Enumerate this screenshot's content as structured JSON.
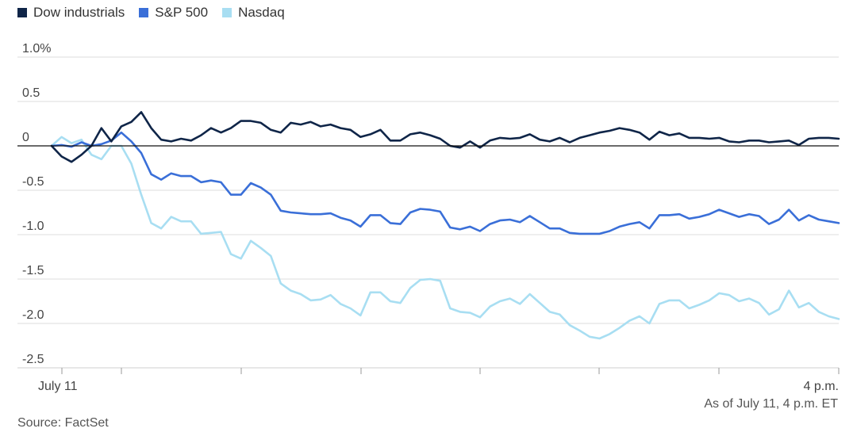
{
  "chart_data": {
    "type": "line",
    "title": "",
    "xlabel": "",
    "ylabel": "",
    "ylim": [
      -2.5,
      1.0
    ],
    "y_ticks": [
      1.0,
      0.5,
      0,
      -0.5,
      -1.0,
      -1.5,
      -2.0,
      -2.5
    ],
    "y_tick_labels": [
      "1.0%",
      "0.5",
      "0",
      "-0.5",
      "-1.0",
      "-1.5",
      "-2.0",
      "-2.5"
    ],
    "x_tick_labels": [
      "July 11",
      "4 p.m."
    ],
    "legend_position": "top-left",
    "grid": true,
    "series": [
      {
        "name": "Dow industrials",
        "color": "#0f2548",
        "values": [
          0,
          -0.12,
          -0.18,
          -0.1,
          0,
          0.2,
          0.05,
          0.22,
          0.27,
          0.38,
          0.2,
          0.07,
          0.05,
          0.08,
          0.06,
          0.12,
          0.2,
          0.15,
          0.2,
          0.28,
          0.28,
          0.26,
          0.18,
          0.15,
          0.26,
          0.24,
          0.27,
          0.22,
          0.24,
          0.2,
          0.18,
          0.1,
          0.13,
          0.18,
          0.06,
          0.06,
          0.13,
          0.15,
          0.12,
          0.08,
          0,
          -0.02,
          0.05,
          -0.02,
          0.06,
          0.09,
          0.08,
          0.09,
          0.13,
          0.07,
          0.05,
          0.09,
          0.04,
          0.09,
          0.12,
          0.15,
          0.17,
          0.2,
          0.18,
          0.15,
          0.07,
          0.16,
          0.12,
          0.14,
          0.09,
          0.09,
          0.08,
          0.09,
          0.05,
          0.04,
          0.06,
          0.06,
          0.04,
          0.05,
          0.06,
          0.01,
          0.08,
          0.09,
          0.09,
          0.08
        ]
      },
      {
        "name": "S&P 500",
        "color": "#3a6fd8",
        "values": [
          0,
          0.01,
          -0.01,
          0.04,
          0,
          0.02,
          0.06,
          0.15,
          0.05,
          -0.08,
          -0.32,
          -0.38,
          -0.31,
          -0.34,
          -0.34,
          -0.41,
          -0.39,
          -0.41,
          -0.55,
          -0.55,
          -0.42,
          -0.47,
          -0.55,
          -0.73,
          -0.75,
          -0.76,
          -0.77,
          -0.77,
          -0.76,
          -0.81,
          -0.84,
          -0.91,
          -0.78,
          -0.78,
          -0.87,
          -0.88,
          -0.75,
          -0.71,
          -0.72,
          -0.74,
          -0.92,
          -0.94,
          -0.91,
          -0.96,
          -0.88,
          -0.84,
          -0.83,
          -0.86,
          -0.79,
          -0.86,
          -0.93,
          -0.93,
          -0.98,
          -0.99,
          -0.99,
          -0.99,
          -0.96,
          -0.91,
          -0.88,
          -0.86,
          -0.93,
          -0.78,
          -0.78,
          -0.77,
          -0.82,
          -0.8,
          -0.77,
          -0.72,
          -0.76,
          -0.8,
          -0.77,
          -0.79,
          -0.88,
          -0.83,
          -0.72,
          -0.84,
          -0.78,
          -0.83,
          -0.85,
          -0.87
        ]
      },
      {
        "name": "Nasdaq",
        "color": "#a8def2",
        "values": [
          0,
          0.1,
          0.03,
          0.07,
          -0.1,
          -0.15,
          0,
          0,
          -0.2,
          -0.55,
          -0.87,
          -0.93,
          -0.8,
          -0.85,
          -0.85,
          -0.99,
          -0.98,
          -0.97,
          -1.22,
          -1.27,
          -1.07,
          -1.15,
          -1.24,
          -1.55,
          -1.63,
          -1.67,
          -1.74,
          -1.73,
          -1.68,
          -1.78,
          -1.83,
          -1.91,
          -1.65,
          -1.65,
          -1.75,
          -1.77,
          -1.6,
          -1.51,
          -1.5,
          -1.52,
          -1.83,
          -1.87,
          -1.88,
          -1.93,
          -1.81,
          -1.75,
          -1.72,
          -1.78,
          -1.67,
          -1.77,
          -1.87,
          -1.9,
          -2.02,
          -2.08,
          -2.15,
          -2.17,
          -2.12,
          -2.05,
          -1.97,
          -1.92,
          -2,
          -1.78,
          -1.74,
          -1.74,
          -1.83,
          -1.79,
          -1.74,
          -1.66,
          -1.68,
          -1.75,
          -1.72,
          -1.77,
          -1.9,
          -1.84,
          -1.63,
          -1.82,
          -1.77,
          -1.87,
          -1.92,
          -1.95
        ]
      }
    ]
  },
  "notes": {
    "as_of": "As of July 11, 4 p.m. ET",
    "source": "Source: FactSet"
  }
}
